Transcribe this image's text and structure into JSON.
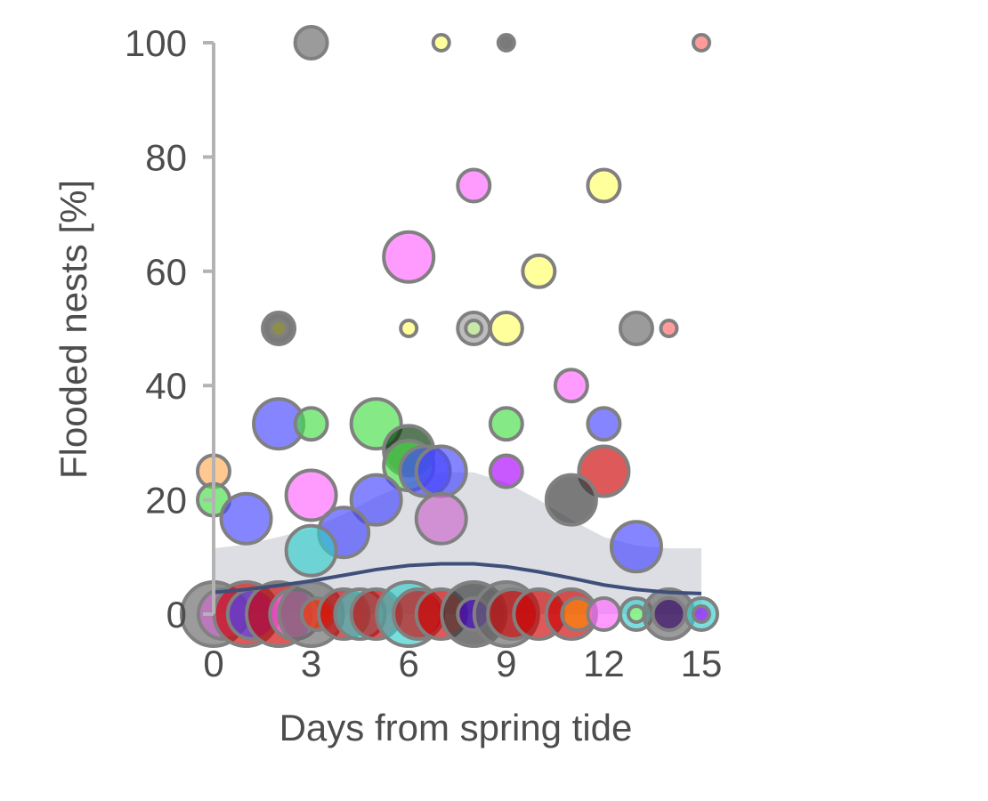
{
  "chart_data": {
    "type": "scatter",
    "title": "",
    "xlabel": "Days from spring tide",
    "ylabel": "Flooded nests [%]",
    "xlim": [
      0,
      15
    ],
    "ylim": [
      0,
      100
    ],
    "xticks": [
      0,
      3,
      6,
      9,
      12,
      15
    ],
    "yticks": [
      0,
      20,
      40,
      60,
      80,
      100
    ],
    "grid": false,
    "legend": "none",
    "point_style": {
      "stroke": "#808080",
      "opacity": 0.65
    },
    "points": [
      {
        "x": 3,
        "y": 100,
        "size": 1,
        "color": "#666666"
      },
      {
        "x": 7,
        "y": 100,
        "size": 0,
        "color": "#ffff66"
      },
      {
        "x": 9,
        "y": 100,
        "size": 0,
        "color": "#333333"
      },
      {
        "x": 15,
        "y": 100,
        "size": 0,
        "color": "#ff6666"
      },
      {
        "x": 8,
        "y": 75,
        "size": 1,
        "color": "#ff66ff"
      },
      {
        "x": 12,
        "y": 75,
        "size": 1,
        "color": "#ffff66"
      },
      {
        "x": 6,
        "y": 62.5,
        "size": 2,
        "color": "#ff66ff"
      },
      {
        "x": 10,
        "y": 60,
        "size": 1,
        "color": "#ffff66"
      },
      {
        "x": 2,
        "y": 50,
        "size": 1,
        "color": "#333333"
      },
      {
        "x": 2,
        "y": 50,
        "size": 0,
        "color": "#999933"
      },
      {
        "x": 6,
        "y": 50,
        "size": 0,
        "color": "#ffff66"
      },
      {
        "x": 8,
        "y": 50,
        "size": 1,
        "color": "#999999"
      },
      {
        "x": 8,
        "y": 50,
        "size": 0,
        "color": "#ccff99"
      },
      {
        "x": 9,
        "y": 50,
        "size": 1,
        "color": "#ffff66"
      },
      {
        "x": 13,
        "y": 50,
        "size": 1,
        "color": "#666666"
      },
      {
        "x": 14,
        "y": 50,
        "size": 0,
        "color": "#ff6666"
      },
      {
        "x": 11,
        "y": 40,
        "size": 1,
        "color": "#ff66ff"
      },
      {
        "x": 2,
        "y": 33.3,
        "size": 2,
        "color": "#4444ff"
      },
      {
        "x": 3,
        "y": 33.3,
        "size": 1,
        "color": "#44dd44"
      },
      {
        "x": 5,
        "y": 33.3,
        "size": 2,
        "color": "#44dd44"
      },
      {
        "x": 9,
        "y": 33.3,
        "size": 1,
        "color": "#44dd44"
      },
      {
        "x": 12,
        "y": 33.3,
        "size": 1,
        "color": "#4444ff"
      },
      {
        "x": 6,
        "y": 28.6,
        "size": 2,
        "color": "#003300"
      },
      {
        "x": 0,
        "y": 25,
        "size": 1,
        "color": "#ffaa55"
      },
      {
        "x": 6,
        "y": 26,
        "size": 2,
        "color": "#44dd44"
      },
      {
        "x": 6.5,
        "y": 25,
        "size": 2,
        "color": "#4444ff"
      },
      {
        "x": 7,
        "y": 25,
        "size": 2,
        "color": "#4444ff"
      },
      {
        "x": 9,
        "y": 25,
        "size": 1,
        "color": "#aa00ff"
      },
      {
        "x": 12,
        "y": 25,
        "size": 2,
        "color": "#cc0000"
      },
      {
        "x": 0,
        "y": 20,
        "size": 1,
        "color": "#44dd44"
      },
      {
        "x": 3,
        "y": 20.8,
        "size": 2,
        "color": "#ff66ff"
      },
      {
        "x": 5,
        "y": 20,
        "size": 2,
        "color": "#4444ff"
      },
      {
        "x": 11,
        "y": 20,
        "size": 2,
        "color": "#333333"
      },
      {
        "x": 1,
        "y": 16.7,
        "size": 2,
        "color": "#4444ff"
      },
      {
        "x": 7,
        "y": 16.7,
        "size": 2,
        "color": "#cc66cc"
      },
      {
        "x": 4,
        "y": 14.3,
        "size": 2,
        "color": "#4444ff"
      },
      {
        "x": 3,
        "y": 11.1,
        "size": 2,
        "color": "#33cccc"
      },
      {
        "x": 13,
        "y": 11.8,
        "size": 2,
        "color": "#4444ff"
      },
      {
        "x": 0,
        "y": 0,
        "size": 3,
        "color": "#666666"
      },
      {
        "x": 0.3,
        "y": 0,
        "size": 2,
        "color": "#cc66cc"
      },
      {
        "x": 1,
        "y": 0,
        "size": 3,
        "color": "#cc0000"
      },
      {
        "x": 1.2,
        "y": 0,
        "size": 2,
        "color": "#4444ff"
      },
      {
        "x": 2,
        "y": 0,
        "size": 3,
        "color": "#cc0000"
      },
      {
        "x": 2.5,
        "y": 0,
        "size": 2,
        "color": "#ff66ff"
      },
      {
        "x": 3,
        "y": 0,
        "size": 3,
        "color": "#666666"
      },
      {
        "x": 3.2,
        "y": 0,
        "size": 1,
        "color": "#ff3300"
      },
      {
        "x": 4,
        "y": 0,
        "size": 2,
        "color": "#cc0000"
      },
      {
        "x": 4.5,
        "y": 0,
        "size": 2,
        "color": "#33cccc"
      },
      {
        "x": 5,
        "y": 0,
        "size": 2,
        "color": "#cc0000"
      },
      {
        "x": 6,
        "y": 0,
        "size": 3,
        "color": "#33cccc"
      },
      {
        "x": 6.3,
        "y": 0,
        "size": 2,
        "color": "#cc0000"
      },
      {
        "x": 7,
        "y": 0,
        "size": 2,
        "color": "#cc0000"
      },
      {
        "x": 8,
        "y": 0,
        "size": 3,
        "color": "#333333"
      },
      {
        "x": 8,
        "y": 0,
        "size": 1,
        "color": "#4400cc"
      },
      {
        "x": 9,
        "y": 0,
        "size": 3,
        "color": "#666666"
      },
      {
        "x": 9.2,
        "y": 0,
        "size": 2,
        "color": "#cc0000"
      },
      {
        "x": 10,
        "y": 0,
        "size": 2,
        "color": "#cc0000"
      },
      {
        "x": 11,
        "y": 0,
        "size": 2,
        "color": "#cc0000"
      },
      {
        "x": 11.2,
        "y": 0,
        "size": 1,
        "color": "#ff8800"
      },
      {
        "x": 12,
        "y": 0,
        "size": 1,
        "color": "#ff66ff"
      },
      {
        "x": 13,
        "y": 0,
        "size": 1,
        "color": "#33cccc"
      },
      {
        "x": 13,
        "y": 0,
        "size": 0,
        "color": "#99ff66"
      },
      {
        "x": 14,
        "y": 0,
        "size": 2,
        "color": "#666666"
      },
      {
        "x": 14,
        "y": 0,
        "size": 1,
        "color": "#330066"
      },
      {
        "x": 15,
        "y": 0,
        "size": 1,
        "color": "#33cccc"
      },
      {
        "x": 15,
        "y": 0,
        "size": 0,
        "color": "#aa00ff"
      }
    ],
    "fit": {
      "x": [
        0,
        1,
        2,
        3,
        4,
        5,
        6,
        7,
        8,
        9,
        10,
        11,
        12,
        13,
        14,
        15
      ],
      "y": [
        3.8,
        4.3,
        5.0,
        5.8,
        6.8,
        7.8,
        8.5,
        8.8,
        8.8,
        8.3,
        7.4,
        6.3,
        5.1,
        4.3,
        3.8,
        3.6
      ],
      "lower": [
        0,
        0,
        0,
        0,
        0,
        0,
        0,
        0,
        0,
        0,
        0,
        0,
        0,
        0,
        0,
        0
      ],
      "upper": [
        11.5,
        12.2,
        13.5,
        15.0,
        17.5,
        20.5,
        23.0,
        24.8,
        24.8,
        23.0,
        20.0,
        16.5,
        13.5,
        12.0,
        11.5,
        11.5
      ],
      "line_color": "#3f4f7a",
      "band_color": "#dcdee3"
    }
  }
}
